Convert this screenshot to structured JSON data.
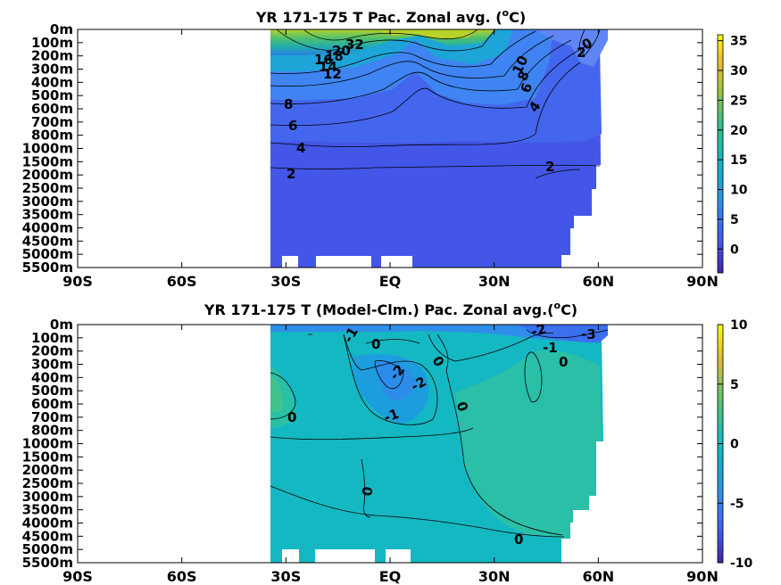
{
  "chart_data": [
    {
      "type": "heatmap",
      "title": "YR 171-175 T Pac. Zonal avg. (°C)",
      "title_main": "YR 171-175 T Pac. Zonal avg. (",
      "title_sup": "o",
      "title_tail": "C)",
      "x_ticks": [
        "90S",
        "60S",
        "30S",
        "EQ",
        "30N",
        "60N",
        "90N"
      ],
      "x_values": [
        -90,
        -60,
        -30,
        0,
        30,
        60,
        90
      ],
      "y_ticks": [
        "0m",
        "100m",
        "200m",
        "300m",
        "400m",
        "500m",
        "600m",
        "700m",
        "800m",
        "1000m",
        "1500m",
        "2000m",
        "2500m",
        "3000m",
        "3500m",
        "4000m",
        "4500m",
        "5000m",
        "5500m"
      ],
      "data_lon_range": [
        -35,
        68
      ],
      "colorbar": {
        "ticks": [
          "35",
          "30",
          "25",
          "20",
          "15",
          "10",
          "5",
          "0"
        ],
        "values": [
          35,
          30,
          25,
          20,
          15,
          10,
          5,
          0
        ],
        "range": [
          -4,
          36
        ]
      },
      "contour_labels": [
        "32",
        "20",
        "18",
        "16",
        "14",
        "12",
        "10",
        "8",
        "6",
        "4",
        "2",
        "0",
        "2",
        "2",
        "4",
        "6",
        "8",
        "2"
      ]
    },
    {
      "type": "heatmap",
      "title": "YR 171-175 T (Model-Clm.) Pac. Zonal avg.(°C)",
      "title_main": "YR 171-175 T (Model-Clm.) Pac. Zonal avg.(",
      "title_sup": "o",
      "title_tail": "C)",
      "x_ticks": [
        "90S",
        "60S",
        "30S",
        "EQ",
        "30N",
        "60N",
        "90N"
      ],
      "x_values": [
        -90,
        -60,
        -30,
        0,
        30,
        60,
        90
      ],
      "y_ticks": [
        "0m",
        "100m",
        "200m",
        "300m",
        "400m",
        "500m",
        "600m",
        "700m",
        "800m",
        "1000m",
        "1500m",
        "2000m",
        "2500m",
        "3000m",
        "3500m",
        "4000m",
        "4500m",
        "5000m",
        "5500m"
      ],
      "data_lon_range": [
        -35,
        68
      ],
      "colorbar": {
        "ticks": [
          "10",
          "5",
          "0",
          "-5",
          "-10"
        ],
        "values": [
          10,
          5,
          0,
          -5,
          -10
        ],
        "range": [
          -10,
          10
        ]
      },
      "contour_labels": [
        "-1",
        "0",
        "-2",
        "-2",
        "0",
        "-1",
        "0",
        "0",
        "-2",
        "-1",
        "0",
        "-3",
        "0",
        "0"
      ]
    }
  ]
}
